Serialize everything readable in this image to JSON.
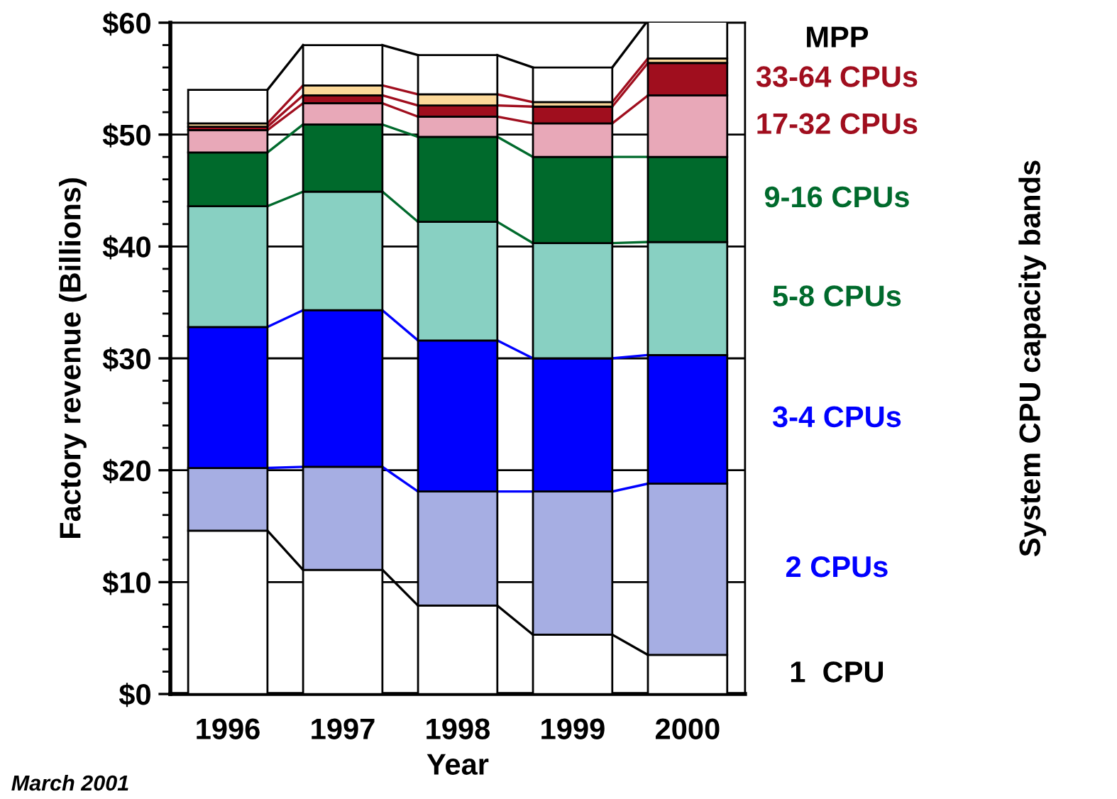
{
  "chart_data": {
    "type": "bar",
    "stacked": true,
    "xlabel": "Year",
    "ylabel": "Factory revenue (Billions)",
    "legend_title": "System CPU capacity bands",
    "legend": "right",
    "grid": "y",
    "categories": [
      "1996",
      "1997",
      "1998",
      "1999",
      "2000"
    ],
    "ylim": [
      0,
      60
    ],
    "yticks": [
      {
        "value": 0,
        "label": "$0"
      },
      {
        "value": 2,
        "label": null
      },
      {
        "value": 4,
        "label": null
      },
      {
        "value": 6,
        "label": null
      },
      {
        "value": 8,
        "label": null
      },
      {
        "value": 10,
        "label": "$10"
      },
      {
        "value": 12,
        "label": null
      },
      {
        "value": 14,
        "label": null
      },
      {
        "value": 16,
        "label": null
      },
      {
        "value": 18,
        "label": null
      },
      {
        "value": 20,
        "label": "$20"
      },
      {
        "value": 22,
        "label": null
      },
      {
        "value": 24,
        "label": null
      },
      {
        "value": 26,
        "label": null
      },
      {
        "value": 28,
        "label": null
      },
      {
        "value": 30,
        "label": "$30"
      },
      {
        "value": 32,
        "label": null
      },
      {
        "value": 34,
        "label": null
      },
      {
        "value": 36,
        "label": null
      },
      {
        "value": 38,
        "label": null
      },
      {
        "value": 40,
        "label": "$40"
      },
      {
        "value": 42,
        "label": null
      },
      {
        "value": 44,
        "label": null
      },
      {
        "value": 46,
        "label": null
      },
      {
        "value": 48,
        "label": null
      },
      {
        "value": 50,
        "label": "$50"
      },
      {
        "value": 52,
        "label": null
      },
      {
        "value": 54,
        "label": null
      },
      {
        "value": 56,
        "label": null
      },
      {
        "value": 58,
        "label": null
      },
      {
        "value": 60,
        "label": "$60"
      }
    ],
    "series": [
      {
        "name": "1  CPU",
        "color": "#ffffff",
        "values": [
          14.6,
          11.1,
          7.9,
          5.3,
          3.5
        ]
      },
      {
        "name": "2 CPUs",
        "color": "#a6aee3",
        "values": [
          5.6,
          9.2,
          10.2,
          12.8,
          15.3
        ]
      },
      {
        "name": "3-4 CPUs",
        "color": "#0000ff",
        "values": [
          12.6,
          14.0,
          13.5,
          11.9,
          11.5
        ]
      },
      {
        "name": "5-8 CPUs",
        "color": "#88d0c2",
        "values": [
          10.8,
          10.6,
          10.6,
          10.3,
          10.1
        ]
      },
      {
        "name": "9-16 CPUs",
        "color": "#006a2c",
        "values": [
          4.8,
          6.0,
          7.6,
          7.7,
          7.6
        ]
      },
      {
        "name": "17-32 CPUs",
        "color": "#e8a8b8",
        "values": [
          2.0,
          1.9,
          1.8,
          3.0,
          5.5
        ]
      },
      {
        "name": "33-64 CPUs",
        "color": "#a00e1e",
        "values": [
          0.3,
          0.7,
          1.0,
          1.5,
          2.9
        ]
      },
      {
        "color": "#fcd99a",
        "values": [
          0.3,
          0.9,
          1.0,
          0.4,
          0.4
        ]
      },
      {
        "name": "MPP",
        "color": "#ffffff",
        "values": [
          3.0,
          3.6,
          3.5,
          3.1,
          3.4
        ]
      }
    ],
    "annotations": [
      "March 2001"
    ]
  }
}
